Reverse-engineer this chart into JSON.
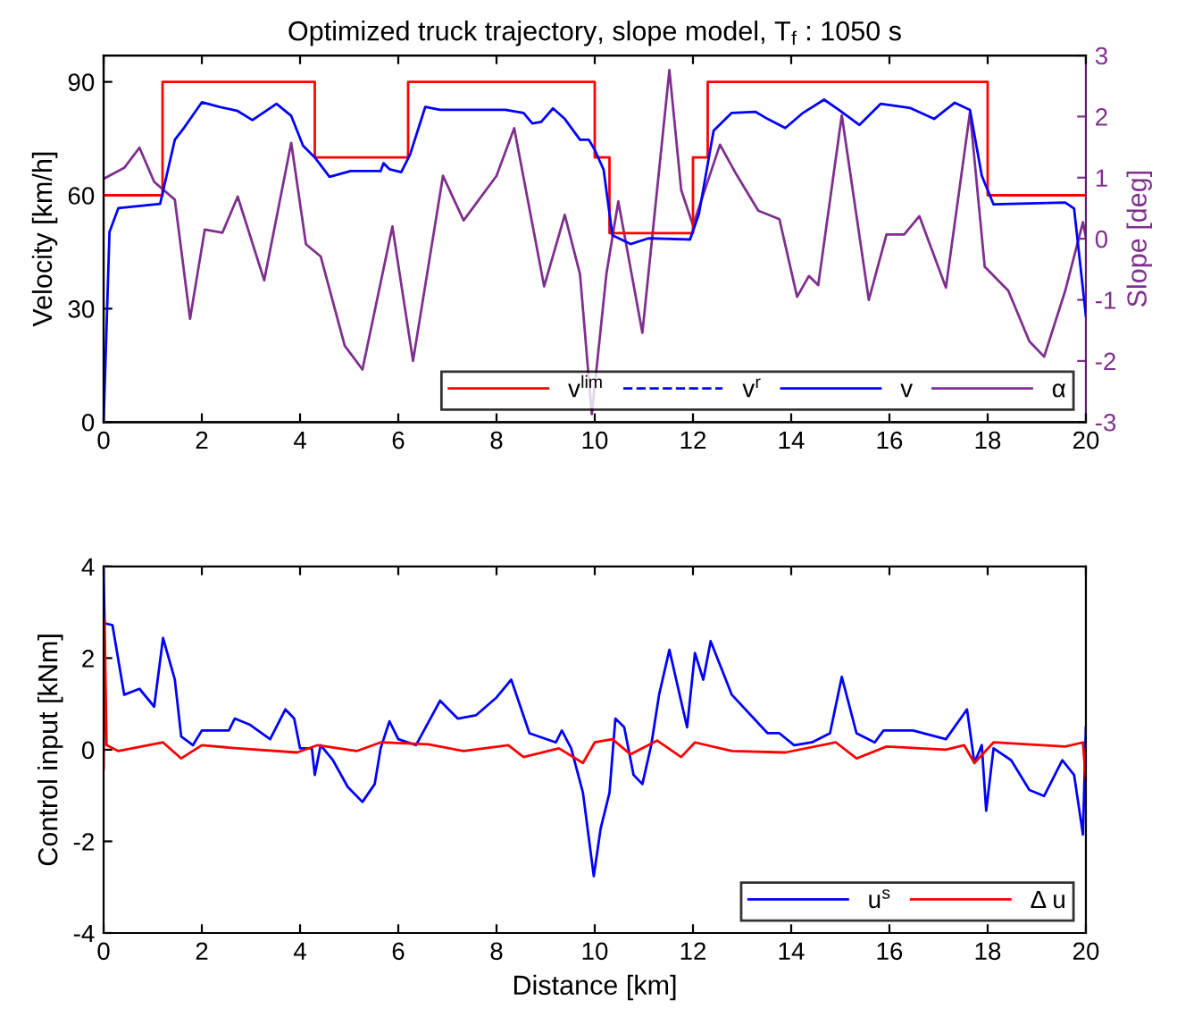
{
  "chart_data": [
    {
      "type": "line",
      "title": "Optimized truck trajectory, slope model, T$_{f}$ : 1050 s",
      "ylabel": "Velocity [km/h]",
      "y2label": "Slope [deg]",
      "xlim": [
        0,
        20
      ],
      "xticks": [
        0,
        2,
        4,
        6,
        8,
        10,
        12,
        14,
        16,
        18,
        20
      ],
      "ylim": [
        0,
        97
      ],
      "yticks": [
        0,
        30,
        60,
        90
      ],
      "y2lim": [
        -3,
        3
      ],
      "y2ticks": [
        -3,
        -2,
        -1,
        0,
        1,
        2,
        3
      ],
      "legend": "bottom right",
      "grid": false,
      "series": [
        {
          "name": "v$^{lim}$",
          "type": "step",
          "color": "#ff0000",
          "x": [
            0,
            1.2,
            4.3,
            6.2,
            10.0,
            10.3,
            12.0,
            12.3,
            18.0,
            20
          ],
          "values": [
            60,
            90,
            70,
            90,
            70,
            50,
            70,
            90,
            60,
            60
          ]
        },
        {
          "name": "v$^{r}$",
          "color": "#0000ff",
          "line_style": "dashed"
        },
        {
          "name": "v",
          "color": "#0000ff",
          "x": [
            0,
            0.12,
            0.3,
            1.15,
            1.27,
            1.45,
            1.64,
            2.0,
            2.36,
            2.73,
            3.03,
            3.52,
            3.82,
            4.06,
            4.3,
            4.6,
            5.03,
            5.64,
            5.7,
            5.82,
            6.06,
            6.24,
            6.55,
            6.85,
            8.18,
            8.55,
            8.73,
            8.91,
            9.15,
            9.39,
            9.7,
            9.88,
            10.0,
            10.18,
            10.36,
            10.73,
            11.09,
            11.94,
            12.12,
            12.42,
            12.79,
            13.27,
            13.52,
            13.88,
            14.24,
            14.67,
            14.97,
            15.39,
            15.82,
            16.42,
            16.91,
            17.33,
            17.64,
            17.88,
            18.12,
            19.58,
            19.76,
            20
          ],
          "values": [
            0,
            50.3,
            56.6,
            57.7,
            64.5,
            74.7,
            77.9,
            84.6,
            83.4,
            82.3,
            79.9,
            84.2,
            81,
            73.1,
            70,
            64.9,
            66.4,
            66.4,
            68.5,
            66.9,
            66.1,
            70.8,
            83.4,
            82.6,
            82.6,
            81.8,
            79,
            79.4,
            83,
            80.2,
            74.7,
            74.7,
            72,
            66.8,
            49.4,
            47.1,
            48.6,
            48.3,
            55,
            77.1,
            81.8,
            82.1,
            80.2,
            77.8,
            81.8,
            85.3,
            82.6,
            78.6,
            84.2,
            83.1,
            80.2,
            84.5,
            82.6,
            65.2,
            57.6,
            58.1,
            56.5,
            28.1
          ]
        },
        {
          "name": "α",
          "color": "#7e2f8e",
          "axis": "y2",
          "x": [
            0,
            0.42,
            0.73,
            1.03,
            1.45,
            1.76,
            2.06,
            2.42,
            2.73,
            3.27,
            3.82,
            4.12,
            4.42,
            4.91,
            5.27,
            5.88,
            6.3,
            6.91,
            7.33,
            8.0,
            8.36,
            8.97,
            9.39,
            9.7,
            9.94,
            10.24,
            10.48,
            10.97,
            11.52,
            11.76,
            12.0,
            12.55,
            12.85,
            13.33,
            13.76,
            14.12,
            14.36,
            14.55,
            15.03,
            15.58,
            15.94,
            16.3,
            16.61,
            17.15,
            17.64,
            17.94,
            18.42,
            18.85,
            19.15,
            19.58,
            19.94,
            20
          ],
          "values": [
            0.98,
            1.16,
            1.49,
            0.93,
            0.64,
            -1.31,
            0.15,
            0.1,
            0.69,
            -0.68,
            1.57,
            -0.09,
            -0.29,
            -1.75,
            -2.14,
            0.2,
            -2.0,
            1.03,
            0.3,
            1.03,
            1.81,
            -0.78,
            0.39,
            -0.58,
            -2.87,
            -0.56,
            0.61,
            -1.54,
            2.76,
            0.8,
            0.22,
            1.54,
            1.1,
            0.46,
            0.32,
            -0.95,
            -0.61,
            -0.76,
            2.02,
            -1.0,
            0.07,
            0.07,
            0.37,
            -0.8,
            2.07,
            -0.46,
            -0.85,
            -1.68,
            -1.93,
            -0.85,
            0.27,
            0.02
          ]
        }
      ]
    },
    {
      "type": "line",
      "xlabel": "Distance [km]",
      "ylabel": "Control input [kNm]",
      "xlim": [
        0,
        20
      ],
      "xticks": [
        0,
        2,
        4,
        6,
        8,
        10,
        12,
        14,
        16,
        18,
        20
      ],
      "ylim": [
        -4,
        4
      ],
      "yticks": [
        -4,
        -2,
        0,
        2,
        4
      ],
      "legend": "bottom right",
      "grid": false,
      "series": [
        {
          "name": "u$^{s}$",
          "color": "#0000ff",
          "x": [
            0,
            0.02,
            0.18,
            0.42,
            0.73,
            1.03,
            1.21,
            1.45,
            1.58,
            1.82,
            2.0,
            2.24,
            2.55,
            2.67,
            2.97,
            3.39,
            3.7,
            3.88,
            4.0,
            4.24,
            4.3,
            4.42,
            4.67,
            4.97,
            5.27,
            5.52,
            5.64,
            5.82,
            6.0,
            6.36,
            6.85,
            7.21,
            7.58,
            8.0,
            8.3,
            8.67,
            9.21,
            9.33,
            9.52,
            9.76,
            9.98,
            10.12,
            10.3,
            10.42,
            10.6,
            10.79,
            10.97,
            11.15,
            11.31,
            11.52,
            11.88,
            12.04,
            12.21,
            12.36,
            12.79,
            13.52,
            13.76,
            14.06,
            14.42,
            14.79,
            15.03,
            15.33,
            15.7,
            15.88,
            16.48,
            17.15,
            17.58,
            17.73,
            17.88,
            17.97,
            18.12,
            18.48,
            18.85,
            19.15,
            19.52,
            19.76,
            19.94,
            20
          ],
          "values": [
            3.93,
            2.76,
            2.72,
            1.2,
            1.33,
            0.94,
            2.44,
            1.53,
            0.29,
            0.1,
            0.42,
            0.42,
            0.42,
            0.68,
            0.55,
            0.23,
            0.88,
            0.68,
            0.03,
            0.03,
            -0.55,
            0.1,
            -0.23,
            -0.81,
            -1.14,
            -0.75,
            0.03,
            0.62,
            0.23,
            0.1,
            1.07,
            0.68,
            0.75,
            1.14,
            1.53,
            0.36,
            0.16,
            0.42,
            0.03,
            -0.94,
            -2.76,
            -1.72,
            -0.94,
            0.68,
            0.49,
            -0.55,
            -0.75,
            0.1,
            1.2,
            2.18,
            0.49,
            2.11,
            1.53,
            2.37,
            1.2,
            0.36,
            0.36,
            0.1,
            0.16,
            0.36,
            1.59,
            0.36,
            0.16,
            0.42,
            0.42,
            0.23,
            0.88,
            -0.29,
            0.1,
            -1.33,
            0.03,
            -0.23,
            -0.88,
            -1.01,
            -0.23,
            -0.55,
            -1.85,
            0.49
          ]
        },
        {
          "name": "Δ u",
          "color": "#ff0000",
          "x": [
            0,
            0.02,
            0.06,
            0.3,
            1.21,
            1.58,
            2.0,
            2.73,
            3.94,
            4.36,
            5.15,
            5.64,
            6.61,
            7.33,
            8.24,
            8.55,
            9.27,
            9.76,
            10.0,
            10.36,
            10.73,
            11.27,
            11.76,
            12.04,
            12.79,
            13.88,
            14.91,
            15.33,
            15.94,
            17.15,
            17.52,
            17.73,
            18.12,
            19.58,
            19.94,
            20
          ],
          "values": [
            -0.42,
            2.83,
            0.1,
            -0.03,
            0.16,
            -0.19,
            0.1,
            0.03,
            -0.06,
            0.1,
            -0.03,
            0.16,
            0.12,
            -0.03,
            0.1,
            -0.16,
            0.03,
            -0.29,
            0.16,
            0.23,
            -0.1,
            0.2,
            -0.16,
            0.16,
            -0.03,
            -0.06,
            0.16,
            -0.19,
            0.07,
            0,
            0.1,
            -0.29,
            0.16,
            0.07,
            0.16,
            -0.68
          ]
        }
      ]
    }
  ]
}
